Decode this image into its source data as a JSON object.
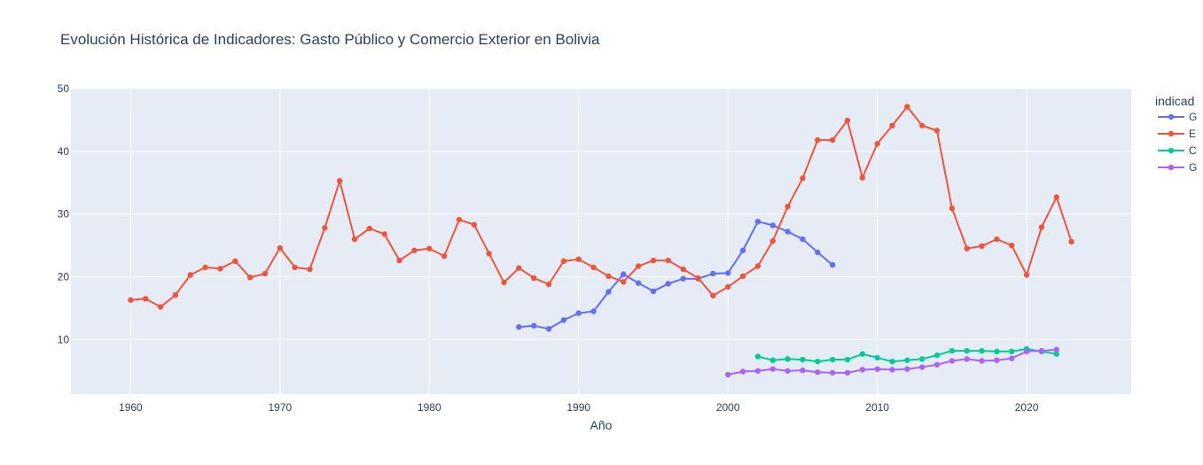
{
  "chart_data": {
    "type": "line",
    "title": "Evolución Histórica de Indicadores: Gasto Público y Comercio Exterior en Bolivia",
    "xlabel": "Año",
    "ylabel": "",
    "xlim": [
      1956,
      2027
    ],
    "ylim": [
      1.3,
      50
    ],
    "x_ticks": [
      1960,
      1970,
      1980,
      1990,
      2000,
      2010,
      2020
    ],
    "y_ticks": [
      10,
      20,
      30,
      40,
      50
    ],
    "grid": true,
    "legend_title": "indicad",
    "legend_position": "right",
    "series": [
      {
        "name": "G",
        "color": "#636efa",
        "x": [
          1986,
          1987,
          1988,
          1989,
          1990,
          1991,
          1992,
          1993,
          1994,
          1995,
          1996,
          1997,
          1998,
          1999,
          2000,
          2001,
          2002,
          2003,
          2004,
          2005,
          2006,
          2007
        ],
        "values": [
          12.0,
          12.2,
          11.7,
          13.1,
          14.2,
          14.5,
          17.6,
          20.4,
          19.0,
          17.7,
          18.9,
          19.7,
          19.7,
          20.5,
          20.6,
          24.2,
          28.8,
          28.2,
          27.2,
          26.0,
          23.9,
          21.9
        ]
      },
      {
        "name": "E",
        "color": "#ef553b",
        "x": [
          1960,
          1961,
          1962,
          1963,
          1964,
          1965,
          1966,
          1967,
          1968,
          1969,
          1970,
          1971,
          1972,
          1973,
          1974,
          1975,
          1976,
          1977,
          1978,
          1979,
          1980,
          1981,
          1982,
          1983,
          1984,
          1985,
          1986,
          1987,
          1988,
          1989,
          1990,
          1991,
          1992,
          1993,
          1994,
          1995,
          1996,
          1997,
          1998,
          1999,
          2000,
          2001,
          2002,
          2003,
          2004,
          2005,
          2006,
          2007,
          2008,
          2009,
          2010,
          2011,
          2012,
          2013,
          2014,
          2015,
          2016,
          2017,
          2018,
          2019,
          2020,
          2021,
          2022,
          2023
        ],
        "values": [
          16.3,
          16.5,
          15.2,
          17.1,
          20.3,
          21.5,
          21.3,
          22.5,
          19.9,
          20.5,
          24.6,
          21.5,
          21.2,
          27.8,
          35.3,
          26.0,
          27.7,
          26.8,
          22.6,
          24.2,
          24.5,
          23.3,
          29.1,
          28.3,
          23.7,
          19.1,
          21.4,
          19.8,
          18.8,
          22.5,
          22.8,
          21.5,
          20.1,
          19.2,
          21.7,
          22.6,
          22.6,
          21.2,
          19.8,
          17.0,
          18.4,
          20.1,
          21.7,
          25.7,
          31.2,
          35.7,
          41.8,
          41.8,
          44.9,
          35.8,
          41.2,
          44.1,
          47.1,
          44.1,
          43.3,
          30.9,
          24.5,
          24.9,
          26.0,
          25.0,
          20.3,
          27.9,
          32.7,
          25.6
        ]
      },
      {
        "name": "C",
        "color": "#00cc96",
        "x": [
          2002,
          2003,
          2004,
          2005,
          2006,
          2007,
          2008,
          2009,
          2010,
          2011,
          2012,
          2013,
          2014,
          2015,
          2016,
          2017,
          2018,
          2019,
          2020,
          2021,
          2022
        ],
        "values": [
          7.3,
          6.7,
          6.9,
          6.8,
          6.5,
          6.8,
          6.8,
          7.7,
          7.1,
          6.5,
          6.7,
          6.9,
          7.5,
          8.2,
          8.2,
          8.2,
          8.1,
          8.1,
          8.5,
          8.1,
          7.7
        ]
      },
      {
        "name": "G",
        "color": "#ab63fa",
        "x": [
          2000,
          2001,
          2002,
          2003,
          2004,
          2005,
          2006,
          2007,
          2008,
          2009,
          2010,
          2011,
          2012,
          2013,
          2014,
          2015,
          2016,
          2017,
          2018,
          2019,
          2020,
          2021,
          2022
        ],
        "values": [
          4.4,
          4.9,
          5.0,
          5.3,
          5.0,
          5.1,
          4.8,
          4.7,
          4.7,
          5.2,
          5.3,
          5.2,
          5.3,
          5.6,
          6.0,
          6.6,
          6.9,
          6.6,
          6.7,
          7.0,
          8.1,
          8.2,
          8.4
        ]
      }
    ]
  }
}
